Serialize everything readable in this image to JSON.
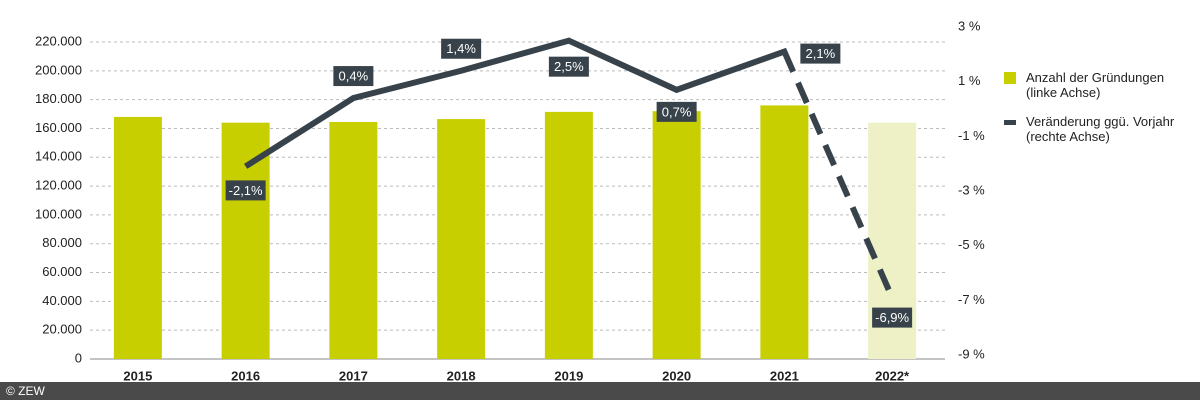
{
  "chart_data": {
    "type": "bar-line",
    "categories": [
      "2015",
      "2016",
      "2017",
      "2018",
      "2019",
      "2020",
      "2021",
      "2022*"
    ],
    "series": [
      {
        "name": "Anzahl der Gründungen (linke Achse)",
        "type": "bar",
        "color": "#c8cf00",
        "colors": [
          "#c8cf00",
          "#c8cf00",
          "#c8cf00",
          "#c8cf00",
          "#c8cf00",
          "#c8cf00",
          "#c8cf00",
          "#eef0c6"
        ],
        "values": [
          168000,
          164000,
          164500,
          166500,
          171500,
          172000,
          176000,
          164000
        ]
      },
      {
        "name": "Veränderung ggü. Vorjahr (rechte Achse)",
        "type": "line",
        "axis": "y2",
        "color": "#37424a",
        "values": [
          null,
          -2.1,
          0.4,
          1.4,
          2.5,
          0.7,
          2.1,
          -6.9
        ],
        "value_labels": [
          null,
          "-2,1%",
          "0,4%",
          "1,4%",
          "2,5%",
          "0,7%",
          "2,1%",
          "-6,9%"
        ]
      }
    ],
    "ylim": [
      0,
      220000
    ],
    "yticks": [
      0,
      {
        "value": 20000,
        "label": "20.000"
      },
      {
        "value": 40000,
        "label": "40.000"
      },
      {
        "value": 60000,
        "label": "60.000"
      },
      {
        "value": 80000,
        "label": "80.000"
      },
      {
        "value": 100000,
        "label": "100.000"
      },
      {
        "value": 120000,
        "label": "120.000"
      },
      {
        "value": 140000,
        "label": "140.000"
      },
      {
        "value": 160000,
        "label": "160.000"
      },
      {
        "value": 180000,
        "label": "180.000"
      },
      {
        "value": 200000,
        "label": "200.000"
      },
      {
        "value": 220000,
        "label": "220.000"
      }
    ],
    "y2lim": [
      -9,
      3
    ],
    "y2ticks": [
      {
        "value": -9,
        "label": "-9 %"
      },
      {
        "value": -7,
        "label": "-7 %"
      },
      {
        "value": -5,
        "label": "-5 %"
      },
      {
        "value": -3,
        "label": "-3 %"
      },
      {
        "value": -1,
        "label": "-1 %"
      },
      {
        "value": 1,
        "label": "1 %"
      },
      {
        "value": 3,
        "label": "3 %"
      }
    ],
    "grid": true,
    "legend": "right"
  },
  "footer": "© ZEW"
}
